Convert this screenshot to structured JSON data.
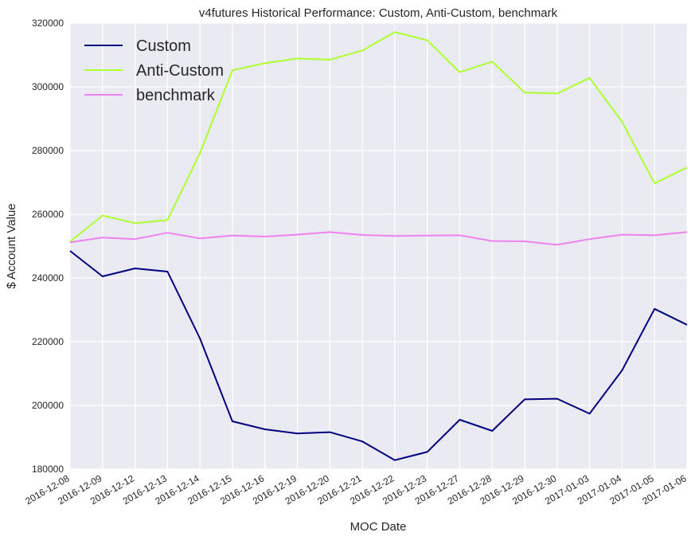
{
  "chart_data": {
    "type": "line",
    "title": "v4futures Historical Performance: Custom, Anti-Custom, benchmark",
    "xlabel": "MOC Date",
    "ylabel": "$ Account Value",
    "ylim": [
      180000,
      320000
    ],
    "yticks": [
      180000,
      200000,
      220000,
      240000,
      260000,
      280000,
      300000,
      320000
    ],
    "grid": true,
    "legend_position": "top-left",
    "x": [
      "2016-12-08",
      "2016-12-09",
      "2016-12-12",
      "2016-12-13",
      "2016-12-14",
      "2016-12-15",
      "2016-12-16",
      "2016-12-19",
      "2016-12-20",
      "2016-12-21",
      "2016-12-22",
      "2016-12-23",
      "2016-12-27",
      "2016-12-28",
      "2016-12-29",
      "2016-12-30",
      "2017-01-03",
      "2017-01-04",
      "2017-01-05",
      "2017-01-06"
    ],
    "series": [
      {
        "name": "Custom",
        "color": "#000080",
        "values": [
          248500,
          240500,
          243000,
          242000,
          221000,
          195000,
          192500,
          191200,
          191600,
          188700,
          182800,
          185400,
          195500,
          192000,
          201900,
          202100,
          197400,
          211000,
          230300,
          225300
        ]
      },
      {
        "name": "Anti-Custom",
        "color": "#adff2f",
        "values": [
          251400,
          259600,
          257200,
          258200,
          279200,
          305200,
          307400,
          308900,
          308500,
          311400,
          317200,
          314600,
          304600,
          307900,
          298200,
          297900,
          302800,
          289000,
          269700,
          274700
        ]
      },
      {
        "name": "benchmark",
        "color": "#ee82ee",
        "values": [
          251200,
          252700,
          252200,
          254200,
          252400,
          253300,
          253000,
          253600,
          254400,
          253500,
          253200,
          253300,
          253400,
          251600,
          251500,
          250400,
          252200,
          253600,
          253400,
          254400
        ]
      }
    ]
  }
}
